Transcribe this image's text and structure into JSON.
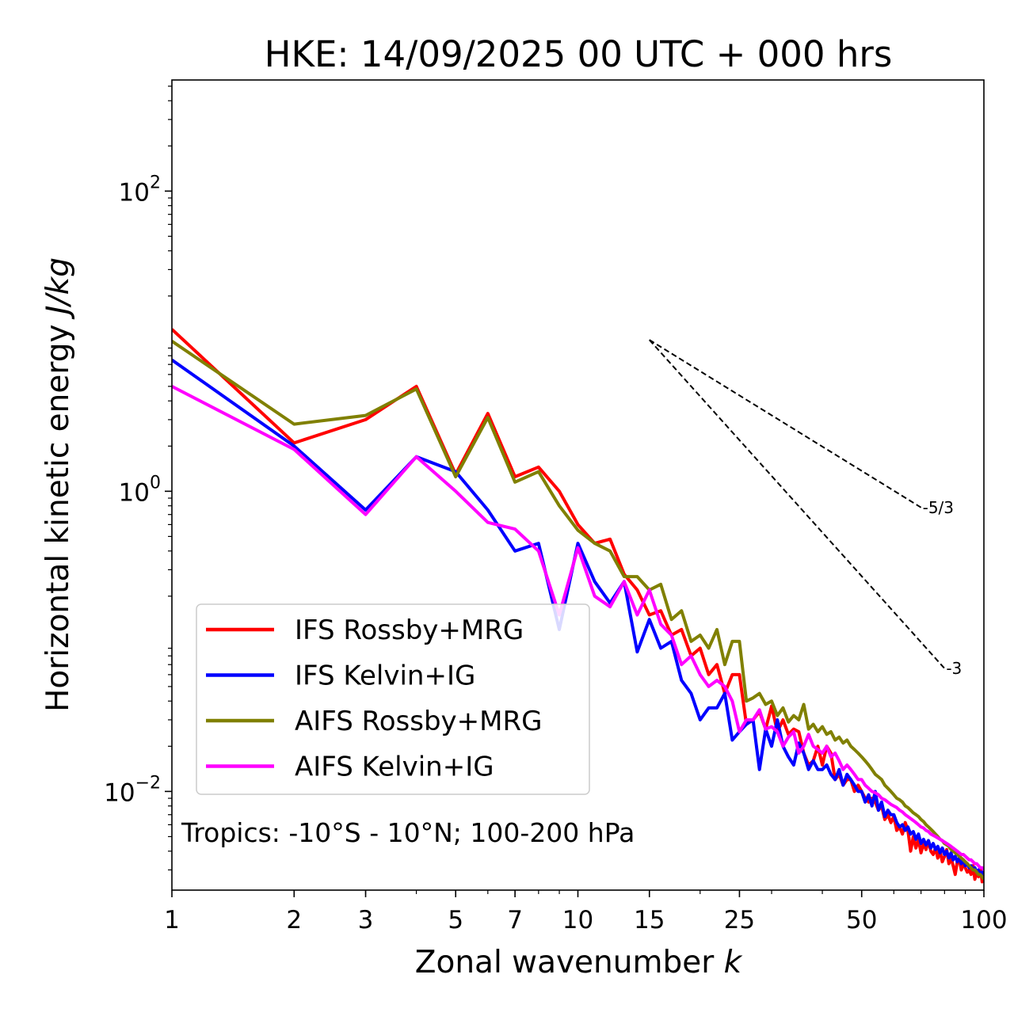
{
  "chart_data": {
    "type": "line",
    "title": "HKE: 14/09/2025 00 UTC + 000 hrs",
    "xlabel_prefix": "Zonal wavenumber ",
    "xlabel_var": "k",
    "ylabel_prefix": "Horizontal kinetic energy ",
    "ylabel_unit": "J/kg",
    "xscale": "log",
    "yscale": "log",
    "xlim": [
      1,
      100
    ],
    "ylim": [
      0.0022,
      550
    ],
    "x_ticks": [
      1,
      2,
      3,
      5,
      7,
      10,
      15,
      25,
      50,
      100
    ],
    "x_tick_labels": [
      "1",
      "2",
      "3",
      "5",
      "7",
      "10",
      "15",
      "25",
      "50",
      "100"
    ],
    "y_ticks": [
      {
        "value": 100,
        "base": "10",
        "exp": "2"
      },
      {
        "value": 1,
        "base": "10",
        "exp": "0"
      },
      {
        "value": 0.01,
        "base": "10",
        "exp": "−2"
      }
    ],
    "annotation": "Tropics: -10°S - 10°N; 100-200 hPa",
    "legend_position": "lower-left",
    "reference_lines": [
      {
        "label": "-5/3",
        "x": [
          15,
          70
        ],
        "y": [
          10.2,
          0.78
        ]
      },
      {
        "label": "-3",
        "x": [
          15,
          80
        ],
        "y": [
          10.2,
          0.066
        ]
      }
    ],
    "series": [
      {
        "name": "IFS Rossby+MRG",
        "color": "#ff0000",
        "values": [
          12.0,
          2.1,
          3.0,
          5.0,
          1.3,
          3.3,
          1.25,
          1.45,
          1.0,
          0.6,
          0.45,
          0.48,
          0.28,
          0.22,
          0.15,
          0.16,
          0.11,
          0.12,
          0.08,
          0.09,
          0.06,
          0.07,
          0.045,
          0.06,
          0.06,
          0.028,
          0.03,
          0.034,
          0.026,
          0.037,
          0.025,
          0.03,
          0.024,
          0.026,
          0.025,
          0.018,
          0.015,
          0.016,
          0.02,
          0.015,
          0.02,
          0.018,
          0.012,
          0.013,
          0.011,
          0.012,
          0.012,
          0.01,
          0.011,
          0.01,
          0.009,
          0.0085,
          0.009,
          0.0085,
          0.0075,
          0.008,
          0.0065,
          0.007,
          0.0062,
          0.0068,
          0.0055,
          0.0058,
          0.0052,
          0.0062,
          0.0055,
          0.004,
          0.005,
          0.0042,
          0.0048,
          0.0039,
          0.0045,
          0.0041,
          0.0047,
          0.004,
          0.0038,
          0.0042,
          0.0036,
          0.004,
          0.0034,
          0.0037,
          0.0041,
          0.0033,
          0.0036,
          0.0032,
          0.0028,
          0.0034,
          0.0035,
          0.003,
          0.0033,
          0.0031,
          0.0029,
          0.003,
          0.0028,
          0.0032,
          0.0026,
          0.0029,
          0.0027,
          0.0031,
          0.0025,
          0.0028
        ]
      },
      {
        "name": "IFS Kelvin+IG",
        "color": "#0000ff",
        "values": [
          7.5,
          2.0,
          0.75,
          1.7,
          1.35,
          0.75,
          0.4,
          0.45,
          0.12,
          0.45,
          0.25,
          0.18,
          0.25,
          0.085,
          0.14,
          0.09,
          0.1,
          0.055,
          0.045,
          0.03,
          0.036,
          0.036,
          0.045,
          0.022,
          0.025,
          0.028,
          0.03,
          0.014,
          0.026,
          0.02,
          0.03,
          0.02,
          0.017,
          0.015,
          0.021,
          0.018,
          0.014,
          0.016,
          0.014,
          0.014,
          0.015,
          0.013,
          0.012,
          0.014,
          0.011,
          0.013,
          0.012,
          0.011,
          0.01,
          0.01,
          0.0085,
          0.0095,
          0.008,
          0.01,
          0.0075,
          0.0085,
          0.0068,
          0.0075,
          0.007,
          0.007,
          0.0062,
          0.0058,
          0.006,
          0.0055,
          0.0058,
          0.0052,
          0.0054,
          0.0048,
          0.0052,
          0.0045,
          0.0048,
          0.0044,
          0.0047,
          0.0042,
          0.0045,
          0.0041,
          0.0043,
          0.0039,
          0.0042,
          0.0038,
          0.004,
          0.0036,
          0.0039,
          0.0035,
          0.0037,
          0.0034,
          0.0036,
          0.0033,
          0.0035,
          0.0032,
          0.0033,
          0.0031,
          0.0032,
          0.003,
          0.0031,
          0.0029,
          0.003,
          0.0028,
          0.0029,
          0.0027
        ]
      },
      {
        "name": "AIFS Rossby+MRG",
        "color": "#808000",
        "values": [
          10.0,
          2.8,
          3.2,
          4.8,
          1.25,
          3.1,
          1.15,
          1.35,
          0.8,
          0.55,
          0.45,
          0.4,
          0.27,
          0.27,
          0.22,
          0.24,
          0.14,
          0.16,
          0.1,
          0.11,
          0.09,
          0.12,
          0.07,
          0.1,
          0.1,
          0.04,
          0.042,
          0.045,
          0.038,
          0.04,
          0.032,
          0.036,
          0.029,
          0.032,
          0.03,
          0.038,
          0.026,
          0.028,
          0.025,
          0.027,
          0.024,
          0.025,
          0.022,
          0.023,
          0.021,
          0.022,
          0.02,
          0.019,
          0.018,
          0.017,
          0.016,
          0.015,
          0.014,
          0.013,
          0.0125,
          0.012,
          0.011,
          0.0105,
          0.01,
          0.0095,
          0.009,
          0.0088,
          0.0085,
          0.008,
          0.0078,
          0.0075,
          0.0072,
          0.007,
          0.0068,
          0.0065,
          0.0063,
          0.006,
          0.0058,
          0.0056,
          0.0054,
          0.0052,
          0.005,
          0.0048,
          0.0047,
          0.0045,
          0.0044,
          0.0043,
          0.0041,
          0.004,
          0.0039,
          0.0038,
          0.0037,
          0.0036,
          0.0035,
          0.0034,
          0.0033,
          0.0032,
          0.0031,
          0.003,
          0.003,
          0.0029,
          0.0028,
          0.0028,
          0.0027,
          0.0026
        ]
      },
      {
        "name": "AIFS Kelvin+IG",
        "color": "#ff00ff",
        "values": [
          5.0,
          1.9,
          0.7,
          1.7,
          1.0,
          0.62,
          0.56,
          0.4,
          0.15,
          0.42,
          0.2,
          0.17,
          0.25,
          0.15,
          0.22,
          0.13,
          0.11,
          0.07,
          0.08,
          0.06,
          0.05,
          0.055,
          0.05,
          0.04,
          0.025,
          0.03,
          0.03,
          0.035,
          0.026,
          0.027,
          0.025,
          0.02,
          0.023,
          0.025,
          0.018,
          0.02,
          0.024,
          0.02,
          0.019,
          0.018,
          0.02,
          0.017,
          0.018,
          0.016,
          0.014,
          0.015,
          0.014,
          0.013,
          0.012,
          0.012,
          0.011,
          0.0105,
          0.01,
          0.0098,
          0.0095,
          0.009,
          0.0088,
          0.0085,
          0.0082,
          0.008,
          0.0078,
          0.0075,
          0.0073,
          0.007,
          0.0068,
          0.0066,
          0.0064,
          0.0062,
          0.006,
          0.0058,
          0.0057,
          0.0055,
          0.0054,
          0.0052,
          0.0051,
          0.005,
          0.0049,
          0.0048,
          0.0047,
          0.0046,
          0.0045,
          0.0044,
          0.0043,
          0.0042,
          0.0041,
          0.004,
          0.0039,
          0.0038,
          0.0038,
          0.0037,
          0.0036,
          0.0035,
          0.0035,
          0.0034,
          0.0033,
          0.0033,
          0.0032,
          0.0031,
          0.0031,
          0.003
        ]
      }
    ]
  }
}
